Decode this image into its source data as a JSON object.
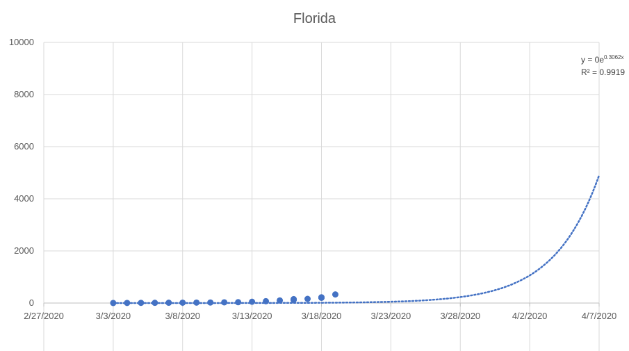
{
  "chart_data": {
    "type": "scatter",
    "title": "Florida",
    "xlabel": "",
    "ylabel": "",
    "x_axis": {
      "type": "date",
      "min": "2020-02-27",
      "max": "2020-04-07",
      "tick_labels": [
        "2/27/2020",
        "3/3/2020",
        "3/8/2020",
        "3/13/2020",
        "3/18/2020",
        "3/23/2020",
        "3/28/2020",
        "4/2/2020",
        "4/7/2020"
      ]
    },
    "y_axis": {
      "min": 0,
      "max": 10000,
      "tick_labels": [
        "0",
        "2000",
        "4000",
        "6000",
        "8000",
        "10000"
      ]
    },
    "grid": true,
    "legend": "none",
    "colors": {
      "marker": "#4472C4",
      "trendline": "#4472C4",
      "grid": "#d9d9d9",
      "text": "#595959"
    },
    "series": [
      {
        "x": [
          "2020-03-03",
          "2020-03-04",
          "2020-03-05",
          "2020-03-06",
          "2020-03-07",
          "2020-03-08",
          "2020-03-09",
          "2020-03-10",
          "2020-03-11",
          "2020-03-12",
          "2020-03-13",
          "2020-03-14",
          "2020-03-15",
          "2020-03-16",
          "2020-03-16",
          "2020-03-16",
          "2020-03-16",
          "2020-03-17",
          "2020-03-18",
          "2020-03-18",
          "2020-03-18",
          "2020-03-18",
          "2020-03-19"
        ],
        "y": [
          2,
          4,
          8,
          9,
          12,
          14,
          17,
          21,
          28,
          32,
          50,
          70,
          100,
          120,
          130,
          140,
          150,
          160,
          200,
          210,
          215,
          220,
          330
        ]
      }
    ],
    "trendline": {
      "type": "exponential",
      "equation": "y = 0e",
      "exponent": "0.3062x",
      "r_squared": "R² = 0.9919",
      "end_value_at_max": 4900
    }
  }
}
